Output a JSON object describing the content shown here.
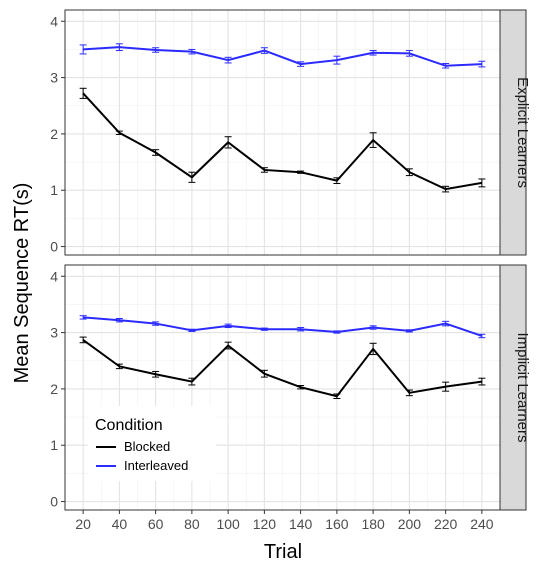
{
  "chart_data": {
    "type": "line",
    "xlabel": "Trial",
    "ylabel": "Mean Sequence RT(s)",
    "x": [
      20,
      40,
      60,
      80,
      100,
      120,
      140,
      160,
      180,
      200,
      220,
      240
    ],
    "xlim": [
      10,
      250
    ],
    "ylim": [
      -0.15,
      4.2
    ],
    "y_ticks": [
      0,
      1,
      2,
      3,
      4
    ],
    "grid": true,
    "legend": {
      "title": "Condition",
      "position": "bottom-left",
      "entries": [
        {
          "label": "Blocked",
          "color": "#000000"
        },
        {
          "label": "Interleaved",
          "color": "#2b2bff"
        }
      ]
    },
    "panels": [
      {
        "strip": "Explicit Learners",
        "series": [
          {
            "name": "Blocked",
            "color": "#000000",
            "values": [
              2.72,
              2.02,
              1.67,
              1.23,
              1.85,
              1.36,
              1.32,
              1.17,
              1.89,
              1.32,
              1.02,
              1.13
            ],
            "errors": [
              0.09,
              0.03,
              0.05,
              0.09,
              0.1,
              0.04,
              0.02,
              0.05,
              0.13,
              0.06,
              0.05,
              0.07
            ]
          },
          {
            "name": "Interleaved",
            "color": "#2b2bff",
            "values": [
              3.5,
              3.54,
              3.49,
              3.46,
              3.31,
              3.48,
              3.24,
              3.31,
              3.44,
              3.43,
              3.21,
              3.24
            ],
            "errors": [
              0.08,
              0.06,
              0.04,
              0.04,
              0.05,
              0.05,
              0.04,
              0.07,
              0.04,
              0.05,
              0.04,
              0.05
            ]
          }
        ]
      },
      {
        "strip": "Implicit Learners",
        "series": [
          {
            "name": "Blocked",
            "color": "#000000",
            "values": [
              2.87,
              2.4,
              2.26,
              2.13,
              2.77,
              2.27,
              2.03,
              1.87,
              2.71,
              1.93,
              2.04,
              2.13
            ],
            "errors": [
              0.05,
              0.04,
              0.05,
              0.06,
              0.06,
              0.06,
              0.03,
              0.04,
              0.1,
              0.05,
              0.08,
              0.06
            ]
          },
          {
            "name": "Interleaved",
            "color": "#2b2bff",
            "values": [
              3.27,
              3.22,
              3.16,
              3.04,
              3.12,
              3.06,
              3.06,
              3.01,
              3.09,
              3.03,
              3.16,
              2.94
            ],
            "errors": [
              0.03,
              0.03,
              0.03,
              0.02,
              0.03,
              0.02,
              0.03,
              0.02,
              0.03,
              0.02,
              0.04,
              0.03
            ]
          }
        ]
      }
    ]
  }
}
